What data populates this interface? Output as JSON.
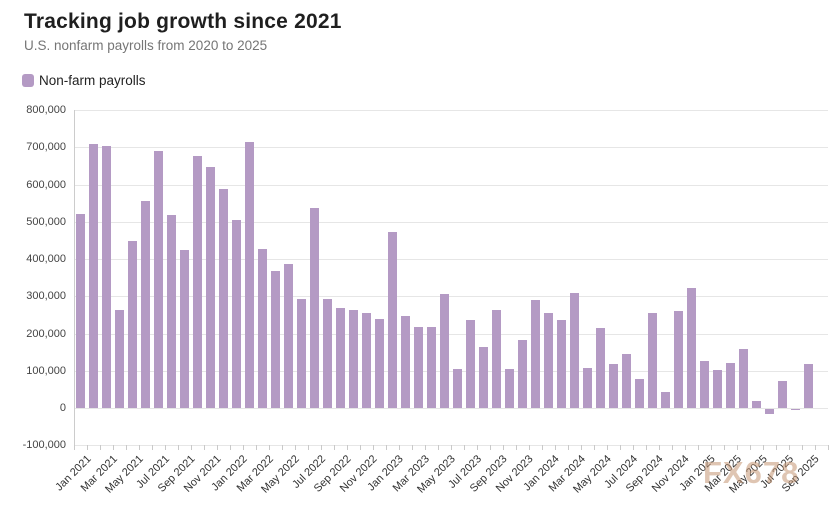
{
  "header": {
    "title": "Tracking job growth since 2021",
    "subtitle": "U.S. nonfarm payrolls from 2020 to 2025"
  },
  "legend": {
    "items": [
      {
        "label": "Non-farm payrolls",
        "color": "#b49ac4"
      }
    ]
  },
  "watermark": {
    "text": "FX678"
  },
  "chart_data": {
    "type": "bar",
    "title": "Tracking job growth since 2021",
    "subtitle": "U.S. nonfarm payrolls from 2020 to 2025",
    "legend_position": "top-left",
    "grid": true,
    "ylim": [
      -100000,
      800000
    ],
    "ytick_step": 100000,
    "ytick_labels": [
      "800,000",
      "700,000",
      "600,000",
      "500,000",
      "400,000",
      "300,000",
      "200,000",
      "100,000",
      "0",
      "-100,000"
    ],
    "xtick_label_interval": 2,
    "categories": [
      "Jan 2021",
      "Feb 2021",
      "Mar 2021",
      "Apr 2021",
      "May 2021",
      "Jun 2021",
      "Jul 2021",
      "Aug 2021",
      "Sep 2021",
      "Oct 2021",
      "Nov 2021",
      "Dec 2021",
      "Jan 2022",
      "Feb 2022",
      "Mar 2022",
      "Apr 2022",
      "May 2022",
      "Jun 2022",
      "Jul 2022",
      "Aug 2022",
      "Sep 2022",
      "Oct 2022",
      "Nov 2022",
      "Dec 2022",
      "Jan 2023",
      "Feb 2023",
      "Mar 2023",
      "Apr 2023",
      "May 2023",
      "Jun 2023",
      "Jul 2023",
      "Aug 2023",
      "Sep 2023",
      "Oct 2023",
      "Nov 2023",
      "Dec 2023",
      "Jan 2024",
      "Feb 2024",
      "Mar 2024",
      "Apr 2024",
      "May 2024",
      "Jun 2024",
      "Jul 2024",
      "Aug 2024",
      "Sep 2024",
      "Oct 2024",
      "Nov 2024",
      "Dec 2024",
      "Jan 2025",
      "Feb 2025",
      "Mar 2025",
      "Apr 2025",
      "May 2025",
      "Jun 2025",
      "Jul 2025",
      "Aug 2025",
      "Sep 2025"
    ],
    "series": [
      {
        "name": "Non-farm payrolls",
        "color": "#b49ac4",
        "values": [
          520000,
          710000,
          704000,
          263000,
          447000,
          557000,
          689000,
          517000,
          424000,
          677000,
          647000,
          588000,
          504000,
          714000,
          428000,
          368000,
          386000,
          293000,
          537000,
          292000,
          269000,
          263000,
          256000,
          239000,
          472000,
          248000,
          217000,
          217000,
          306000,
          105000,
          236000,
          165000,
          262000,
          105000,
          182000,
          290000,
          256000,
          236000,
          310000,
          108000,
          216000,
          118000,
          144000,
          78000,
          254000,
          44000,
          261000,
          323000,
          125000,
          102000,
          120000,
          158000,
          19000,
          -13000,
          72000,
          -4000,
          119000
        ]
      }
    ]
  }
}
